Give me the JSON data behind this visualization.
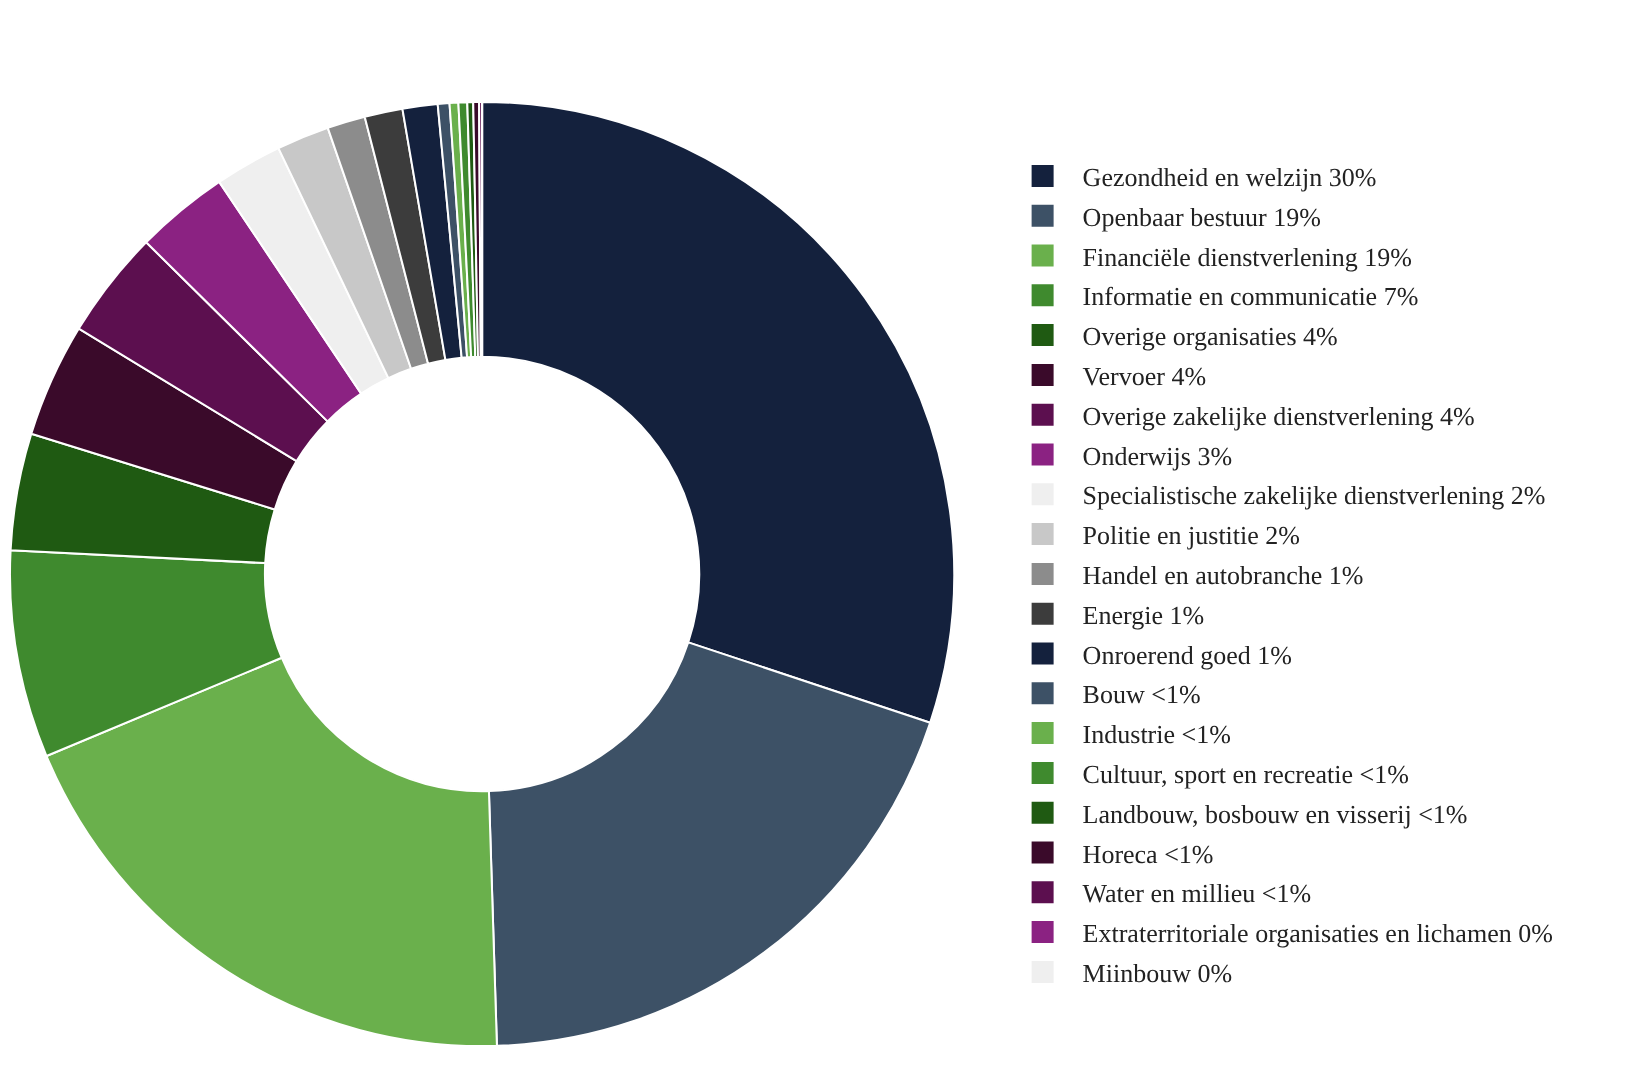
{
  "chart_data": {
    "type": "donut",
    "categories": [
      "Gezondheid en welzijn 30%",
      "Openbaar bestuur 19%",
      "Financiële dienstverlening 19%",
      "Informatie en communicatie 7%",
      "Overige organisaties 4%",
      "Vervoer 4%",
      "Overige zakelijke dienstverlening 4%",
      "Onderwijs 3%",
      "Specialistische zakelijke dienstverlening 2%",
      "Politie en justitie 2%",
      "Handel en autobranche 1%",
      "Energie 1%",
      "Onroerend goed 1%",
      "Bouw <1%",
      "Industrie <1%",
      "Cultuur, sport en recreatie <1%",
      "Landbouw, bosbouw en visserij <1%",
      "Horeca <1%",
      "Water en millieu <1%",
      "Extraterritoriale organisaties en lichamen 0%",
      "Miinbouw 0%"
    ],
    "values": [
      30.1,
      19.4,
      19.2,
      7.1,
      4.0,
      3.9,
      3.7,
      3.2,
      2.3,
      1.8,
      1.3,
      1.3,
      1.2,
      0.4,
      0.3,
      0.3,
      0.2,
      0.2,
      0.1,
      0,
      0
    ],
    "colors": [
      "#14213d",
      "#3d5166",
      "#6ab04c",
      "#3f8a2e",
      "#1f5a12",
      "#3a0a2a",
      "#5c0f4f",
      "#8b2282",
      "#efefef",
      "#c8c8c8",
      "#8c8c8c",
      "#3c3c3c",
      "#14213d",
      "#3d5166",
      "#6ab04c",
      "#3f8a2e",
      "#1f5a12",
      "#3a0a2a",
      "#5c0f4f",
      "#8b2282",
      "#efefef"
    ],
    "legend": "right"
  }
}
